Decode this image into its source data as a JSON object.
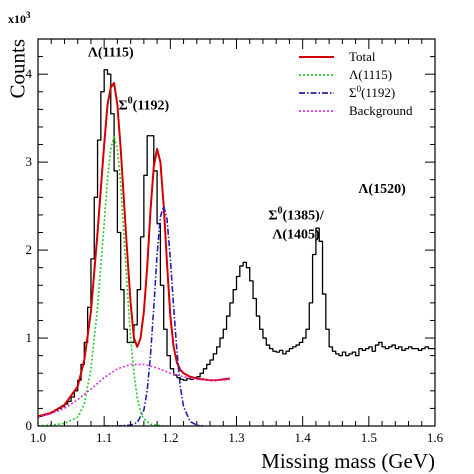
{
  "chart_data": {
    "type": "line",
    "xlabel": "Missing mass (GeV)",
    "ylabel": "Counts",
    "y_multiplier": "x10^3",
    "xlim": [
      1.0,
      1.6
    ],
    "ylim": [
      0,
      4.4
    ],
    "x_ticks": [
      "1.0",
      "1.1",
      "1.2",
      "1.3",
      "1.4",
      "1.5",
      "1.6"
    ],
    "y_ticks": [
      "0",
      "1",
      "2",
      "3",
      "4"
    ],
    "legend": {
      "position": "top-right",
      "entries": [
        {
          "label": "Total",
          "color": "#d40000",
          "style": "solid"
        },
        {
          "label": "Λ(1115)",
          "color": "#22cc22",
          "style": "dotted"
        },
        {
          "label": "Σ0(1192)",
          "label_base": "Σ",
          "label_sup": "0",
          "label_rest": "(1192)",
          "color": "#2222aa",
          "style": "dashdot"
        },
        {
          "label": "Background",
          "color": "#dd33dd",
          "style": "dotted"
        }
      ]
    },
    "annotations": [
      {
        "id": "lambda1115",
        "text": "Λ(1115)",
        "x": 1.11,
        "y": 4.2
      },
      {
        "id": "sigma1192",
        "base": "Σ",
        "sup": "0",
        "rest": "(1192)",
        "x": 1.16,
        "y": 3.6
      },
      {
        "id": "sigma1385a",
        "base": "Σ",
        "sup": "0",
        "rest": "(1385)/",
        "x": 1.39,
        "y": 2.35
      },
      {
        "id": "sigma1385b",
        "text": "Λ(1405)",
        "x": 1.39,
        "y": 2.13
      },
      {
        "id": "lambda1520",
        "text": "Λ(1520)",
        "x": 1.52,
        "y": 2.65
      }
    ],
    "series": [
      {
        "name": "Data",
        "color": "#000000",
        "style": "histogram",
        "bin_width": 0.005,
        "x": [
          1.0,
          1.005,
          1.01,
          1.015,
          1.02,
          1.025,
          1.03,
          1.035,
          1.04,
          1.045,
          1.05,
          1.055,
          1.06,
          1.065,
          1.07,
          1.075,
          1.08,
          1.085,
          1.09,
          1.095,
          1.1,
          1.105,
          1.11,
          1.115,
          1.12,
          1.125,
          1.13,
          1.135,
          1.14,
          1.145,
          1.15,
          1.155,
          1.16,
          1.165,
          1.17,
          1.175,
          1.18,
          1.185,
          1.19,
          1.195,
          1.2,
          1.205,
          1.21,
          1.215,
          1.22,
          1.225,
          1.23,
          1.235,
          1.24,
          1.245,
          1.25,
          1.255,
          1.26,
          1.265,
          1.27,
          1.275,
          1.28,
          1.285,
          1.29,
          1.295,
          1.3,
          1.305,
          1.31,
          1.315,
          1.32,
          1.325,
          1.33,
          1.335,
          1.34,
          1.345,
          1.35,
          1.355,
          1.36,
          1.365,
          1.37,
          1.375,
          1.38,
          1.385,
          1.39,
          1.395,
          1.4,
          1.405,
          1.41,
          1.415,
          1.42,
          1.425,
          1.43,
          1.435,
          1.44,
          1.445,
          1.45,
          1.455,
          1.46,
          1.465,
          1.47,
          1.475,
          1.48,
          1.485,
          1.49,
          1.495,
          1.5,
          1.505,
          1.51,
          1.515,
          1.52,
          1.525,
          1.53,
          1.535,
          1.54,
          1.545,
          1.55,
          1.555,
          1.56,
          1.565,
          1.57,
          1.575,
          1.58,
          1.585,
          1.59,
          1.595
        ],
        "y": [
          0.11,
          0.12,
          0.13,
          0.14,
          0.16,
          0.18,
          0.2,
          0.22,
          0.25,
          0.28,
          0.33,
          0.4,
          0.52,
          0.7,
          0.95,
          1.35,
          1.9,
          2.6,
          3.25,
          3.8,
          4.05,
          4.0,
          3.55,
          2.9,
          2.2,
          1.55,
          1.1,
          0.95,
          0.95,
          1.15,
          1.55,
          2.15,
          2.85,
          3.3,
          3.3,
          2.9,
          2.3,
          1.6,
          1.1,
          0.8,
          0.65,
          0.58,
          0.55,
          0.53,
          0.52,
          0.54,
          0.53,
          0.55,
          0.56,
          0.6,
          0.65,
          0.7,
          0.75,
          0.82,
          0.9,
          1.0,
          1.1,
          1.25,
          1.4,
          1.55,
          1.7,
          1.82,
          1.86,
          1.8,
          1.65,
          1.45,
          1.25,
          1.1,
          1.0,
          0.92,
          0.88,
          0.85,
          0.84,
          0.86,
          0.82,
          0.85,
          0.88,
          0.9,
          0.92,
          0.95,
          1.0,
          1.1,
          1.4,
          1.95,
          2.25,
          2.1,
          1.5,
          1.1,
          0.9,
          0.85,
          0.82,
          0.8,
          0.84,
          0.8,
          0.82,
          0.84,
          0.8,
          0.88,
          0.86,
          0.88,
          0.9,
          0.85,
          0.92,
          0.95,
          0.9,
          0.88,
          0.9,
          0.92,
          0.88,
          0.9,
          0.86,
          0.88,
          0.9,
          0.88,
          0.88,
          0.86,
          0.88,
          0.9,
          0.88,
          0.88
        ]
      },
      {
        "name": "Total",
        "color": "#d40000",
        "style": "solid",
        "x": [
          1.0,
          1.02,
          1.04,
          1.06,
          1.07,
          1.08,
          1.09,
          1.1,
          1.105,
          1.11,
          1.115,
          1.12,
          1.125,
          1.13,
          1.135,
          1.14,
          1.145,
          1.15,
          1.155,
          1.16,
          1.165,
          1.17,
          1.175,
          1.18,
          1.185,
          1.19,
          1.195,
          1.2,
          1.205,
          1.21,
          1.215,
          1.22,
          1.23,
          1.24,
          1.25,
          1.26,
          1.27,
          1.28,
          1.29
        ],
        "y": [
          0.11,
          0.15,
          0.24,
          0.45,
          0.75,
          1.3,
          2.2,
          3.2,
          3.65,
          3.85,
          3.9,
          3.65,
          3.15,
          2.55,
          1.95,
          1.4,
          1.0,
          0.9,
          1.0,
          1.3,
          1.8,
          2.45,
          2.95,
          3.15,
          3.0,
          2.5,
          1.85,
          1.25,
          0.9,
          0.72,
          0.64,
          0.6,
          0.56,
          0.54,
          0.53,
          0.52,
          0.52,
          0.53,
          0.54
        ]
      },
      {
        "name": "Λ(1115)",
        "color": "#22cc22",
        "style": "dotted",
        "x": [
          1.0,
          1.02,
          1.04,
          1.06,
          1.07,
          1.08,
          1.09,
          1.1,
          1.105,
          1.11,
          1.115,
          1.12,
          1.125,
          1.13,
          1.135,
          1.14,
          1.145,
          1.15,
          1.155,
          1.16,
          1.17,
          1.18,
          1.19,
          1.2
        ],
        "y": [
          0.0,
          0.01,
          0.03,
          0.1,
          0.25,
          0.65,
          1.35,
          2.3,
          2.8,
          3.15,
          3.3,
          3.15,
          2.75,
          2.15,
          1.55,
          1.0,
          0.6,
          0.32,
          0.16,
          0.08,
          0.02,
          0.01,
          0.0,
          0.0
        ]
      },
      {
        "name": "Σ0(1192)",
        "color": "#2222aa",
        "style": "dashdot",
        "x": [
          1.1,
          1.12,
          1.14,
          1.15,
          1.16,
          1.165,
          1.17,
          1.175,
          1.18,
          1.185,
          1.19,
          1.195,
          1.2,
          1.205,
          1.21,
          1.215,
          1.22,
          1.23,
          1.24,
          1.25
        ],
        "y": [
          0.0,
          0.0,
          0.01,
          0.04,
          0.18,
          0.4,
          0.8,
          1.35,
          1.95,
          2.38,
          2.5,
          2.35,
          1.9,
          1.35,
          0.85,
          0.45,
          0.22,
          0.05,
          0.01,
          0.0
        ]
      },
      {
        "name": "Background",
        "color": "#dd33dd",
        "style": "dotted",
        "x": [
          1.0,
          1.02,
          1.04,
          1.06,
          1.08,
          1.1,
          1.12,
          1.14,
          1.16,
          1.18,
          1.2,
          1.22,
          1.24,
          1.26,
          1.28,
          1.29
        ],
        "y": [
          0.1,
          0.14,
          0.2,
          0.3,
          0.42,
          0.55,
          0.65,
          0.7,
          0.7,
          0.66,
          0.6,
          0.56,
          0.53,
          0.52,
          0.52,
          0.53
        ]
      }
    ]
  }
}
